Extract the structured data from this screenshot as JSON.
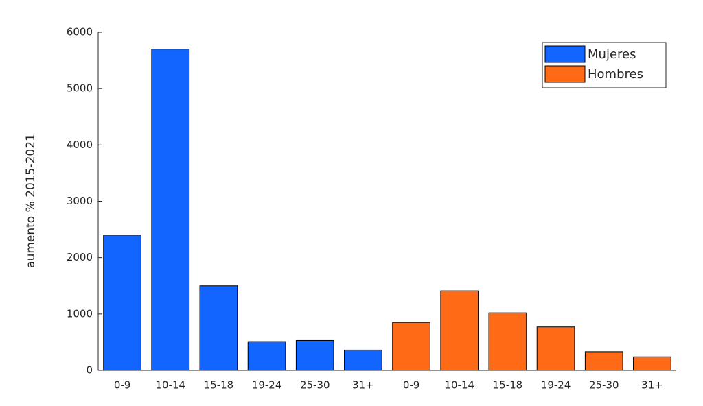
{
  "chart_data": {
    "type": "bar",
    "ylabel": "aumento % 2015-2021",
    "categories": [
      "0-9",
      "10-14",
      "15-18",
      "19-24",
      "25-30",
      "31+",
      "0-9",
      "10-14",
      "15-18",
      "19-24",
      "25-30",
      "31+"
    ],
    "series": [
      {
        "name": "Mujeres",
        "color": "#1266ff",
        "values": [
          2400,
          5700,
          1500,
          510,
          530,
          360,
          null,
          null,
          null,
          null,
          null,
          null
        ]
      },
      {
        "name": "Hombres",
        "color": "#ff6a16",
        "values": [
          null,
          null,
          null,
          null,
          null,
          null,
          850,
          1410,
          1020,
          770,
          330,
          240
        ]
      }
    ],
    "ylim": [
      0,
      6000
    ],
    "yticks": [
      0,
      1000,
      2000,
      3000,
      4000,
      5000,
      6000
    ],
    "grid": false,
    "legend": "upper-right"
  }
}
